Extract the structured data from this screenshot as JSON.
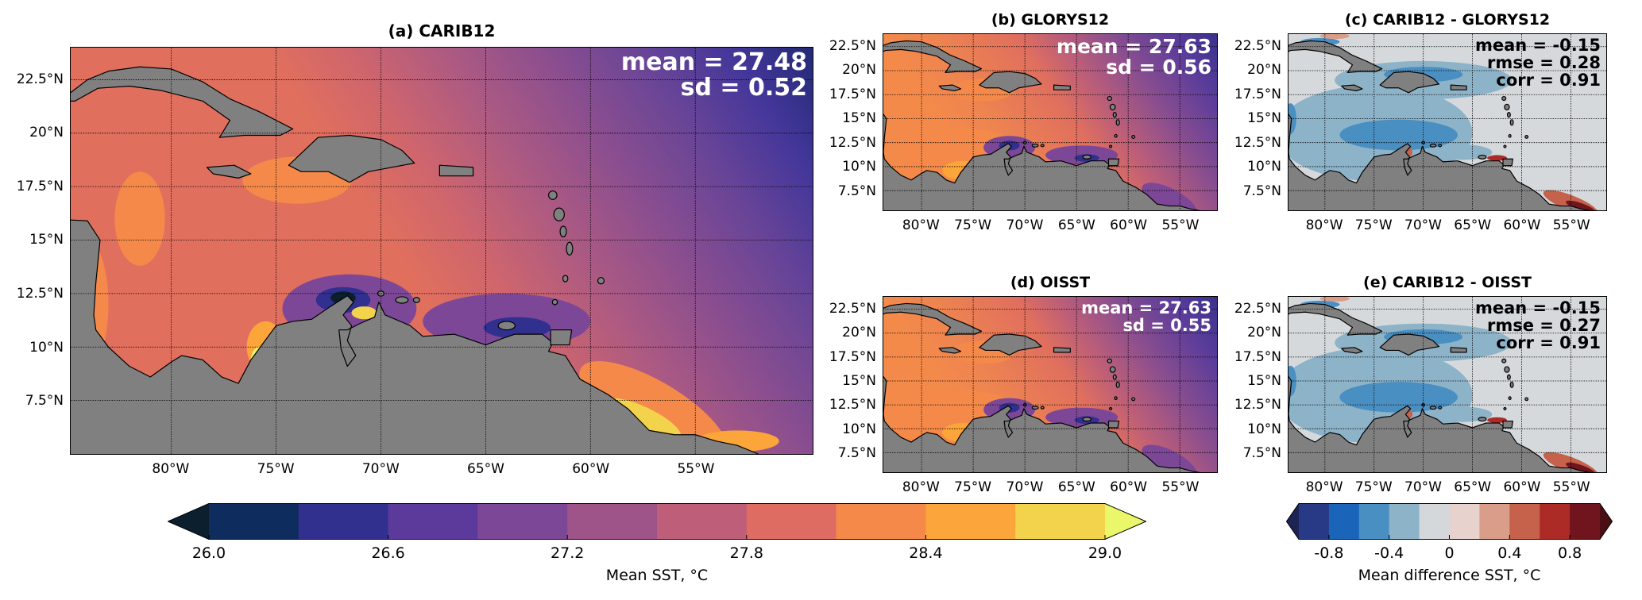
{
  "panels": {
    "a": {
      "title": "(a) CARIB12",
      "stats": [
        "mean = 27.48",
        "sd = 0.52"
      ]
    },
    "b": {
      "title": "(b) GLORYS12",
      "stats": [
        "mean = 27.63",
        "sd = 0.56"
      ]
    },
    "c": {
      "title": "(c) CARIB12 - GLORYS12",
      "stats": [
        "mean = -0.15",
        "rmse = 0.28",
        "corr = 0.91"
      ]
    },
    "d": {
      "title": "(d) OISST",
      "stats": [
        "mean = 27.63",
        "sd = 0.55"
      ]
    },
    "e": {
      "title": "(e) CARIB12 - OISST",
      "stats": [
        "mean = -0.15",
        "rmse = 0.27",
        "corr = 0.91"
      ]
    }
  },
  "axes": {
    "lat_ticks": [
      {
        "value": 7.5,
        "label": "7.5°N"
      },
      {
        "value": 10,
        "label": "10°N"
      },
      {
        "value": 12.5,
        "label": "12.5°N"
      },
      {
        "value": 15,
        "label": "15°N"
      },
      {
        "value": 17.5,
        "label": "17.5°N"
      },
      {
        "value": 20,
        "label": "20°N"
      },
      {
        "value": 22.5,
        "label": "22.5°N"
      }
    ],
    "lon_ticks_a": [
      {
        "value": -80,
        "label": "80°W"
      },
      {
        "value": -75,
        "label": "75°W"
      },
      {
        "value": -70,
        "label": "70°W"
      },
      {
        "value": -65,
        "label": "65°W"
      },
      {
        "value": -60,
        "label": "60°W"
      },
      {
        "value": -55,
        "label": "55°W"
      }
    ],
    "lon_ticks_small": [
      {
        "value": -80,
        "label": "80°W"
      },
      {
        "value": -75,
        "label": "75°W"
      },
      {
        "value": -70,
        "label": "70°W"
      },
      {
        "value": -65,
        "label": "65°W"
      },
      {
        "value": -60,
        "label": "60°W"
      },
      {
        "value": -55,
        "label": "55°W"
      }
    ]
  },
  "colorbars": {
    "sst": {
      "label": "Mean SST, °C",
      "range": [
        26.0,
        29.0
      ],
      "ticks": [
        {
          "value": 26.0,
          "label": "26.0"
        },
        {
          "value": 26.6,
          "label": "26.6"
        },
        {
          "value": 27.2,
          "label": "27.2"
        },
        {
          "value": 27.8,
          "label": "27.8"
        },
        {
          "value": 28.4,
          "label": "28.4"
        },
        {
          "value": 29.0,
          "label": "29.0"
        }
      ],
      "under_color": "#0b1f2e",
      "over_color": "#eaf76a",
      "colors": [
        "#0f2c5e",
        "#31308f",
        "#5b3a9c",
        "#7d4797",
        "#9e5389",
        "#be5e78",
        "#de6c62",
        "#f4894a",
        "#fba53a",
        "#f3d34b"
      ]
    },
    "diff": {
      "label": "Mean difference SST, °C",
      "range": [
        -1.0,
        1.0
      ],
      "ticks": [
        {
          "value": -0.8,
          "label": "-0.8"
        },
        {
          "value": -0.4,
          "label": "-0.4"
        },
        {
          "value": 0,
          "label": "0"
        },
        {
          "value": 0.4,
          "label": "0.4"
        },
        {
          "value": 0.8,
          "label": "0.8"
        }
      ],
      "under_color": "#1d2355",
      "over_color": "#4a0e14",
      "colors": [
        "#283a86",
        "#1a64ba",
        "#4a8fc2",
        "#8db3c9",
        "#d4d8db",
        "#e8d2cd",
        "#d99d8a",
        "#c6614b",
        "#ad2b27",
        "#70141d"
      ]
    }
  }
}
